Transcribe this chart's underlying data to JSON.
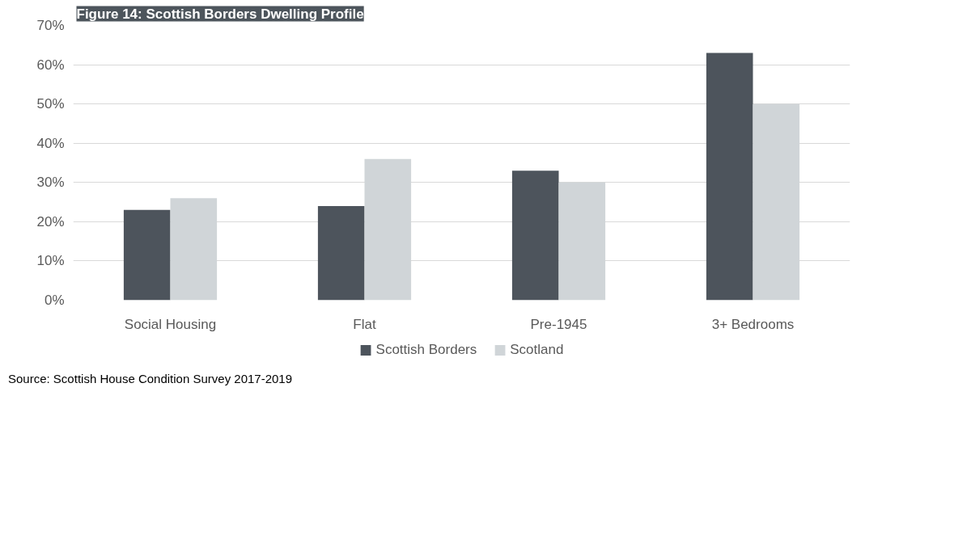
{
  "chart_data": {
    "type": "bar",
    "title": "Figure 14: Scottish Borders Dwelling Profile",
    "categories": [
      "Social Housing",
      "Flat",
      "Pre-1945",
      "3+ Bedrooms"
    ],
    "series": [
      {
        "name": "Scottish Borders",
        "color": "#4d545c",
        "values": [
          23,
          24,
          33,
          63
        ]
      },
      {
        "name": "Scotland",
        "color": "#d0d5d8",
        "values": [
          26,
          36,
          30,
          50
        ]
      }
    ],
    "ylim": [
      0,
      70
    ],
    "yticks": [
      {
        "value": 0,
        "label": "0%"
      },
      {
        "value": 10,
        "label": "10%"
      },
      {
        "value": 20,
        "label": "20%"
      },
      {
        "value": 30,
        "label": "30%"
      },
      {
        "value": 40,
        "label": "40%"
      },
      {
        "value": 50,
        "label": "50%"
      },
      {
        "value": 60,
        "label": "60%"
      },
      {
        "value": 70,
        "label": "70%"
      }
    ],
    "grid": "y",
    "legend": "bottom",
    "annotations": [
      "Source: Scottish House Condition Survey 2017-2019"
    ]
  }
}
